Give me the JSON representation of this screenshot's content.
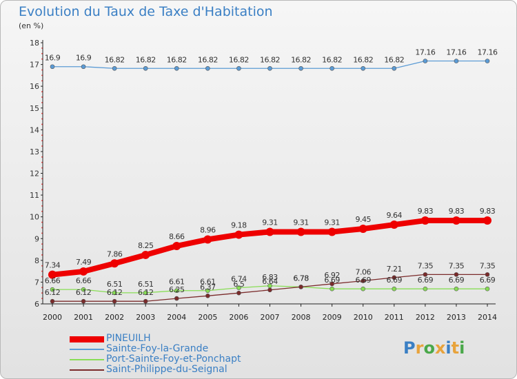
{
  "header": {
    "title": "Evolution du Taux de Taxe d'Habitation",
    "subtitle": "(en %)"
  },
  "logo": {
    "text": "Proxiti",
    "letter_colors": [
      "#3a7fc4",
      "#e8a33c",
      "#4aa84a",
      "#e8a33c",
      "#3a7fc4",
      "#e8a33c",
      "#4aa84a"
    ]
  },
  "chart_data": {
    "type": "line",
    "title": "Evolution du Taux de Taxe d'Habitation",
    "subtitle": "(en %)",
    "xlabel": "",
    "ylabel": "",
    "ylim": [
      6,
      18
    ],
    "yticks": [
      6,
      7,
      8,
      9,
      10,
      11,
      12,
      13,
      14,
      15,
      16,
      17,
      18
    ],
    "grid": false,
    "legend_position": "bottom-left",
    "x": [
      "2000",
      "2001",
      "2002",
      "2003",
      "2004",
      "2005",
      "2006",
      "2007",
      "2008",
      "2009",
      "2010",
      "2011",
      "2012",
      "2013",
      "2014"
    ],
    "series": [
      {
        "name": "PINEUILH",
        "color": "#ee0000",
        "values": [
          7.34,
          7.49,
          7.86,
          8.25,
          8.66,
          8.96,
          9.18,
          9.31,
          9.31,
          9.31,
          9.45,
          9.64,
          9.83,
          9.83,
          9.83
        ]
      },
      {
        "name": "Sainte-Foy-la-Grande",
        "color": "#5b9bd5",
        "values": [
          16.9,
          16.9,
          16.82,
          16.82,
          16.82,
          16.82,
          16.82,
          16.82,
          16.82,
          16.82,
          16.82,
          16.82,
          17.16,
          17.16,
          17.16
        ]
      },
      {
        "name": "Port-Sainte-Foy-et-Ponchapt",
        "color": "#88dd55",
        "values": [
          6.66,
          6.66,
          6.51,
          6.51,
          6.61,
          6.61,
          6.74,
          6.83,
          6.78,
          6.69,
          6.69,
          6.69,
          6.69,
          6.69,
          6.69
        ]
      },
      {
        "name": "Saint-Philippe-du-Seignal",
        "color": "#7a2a2a",
        "values": [
          6.12,
          6.12,
          6.12,
          6.12,
          6.25,
          6.37,
          6.5,
          6.64,
          6.78,
          6.92,
          7.06,
          7.21,
          7.35,
          7.35,
          7.35
        ]
      }
    ]
  }
}
